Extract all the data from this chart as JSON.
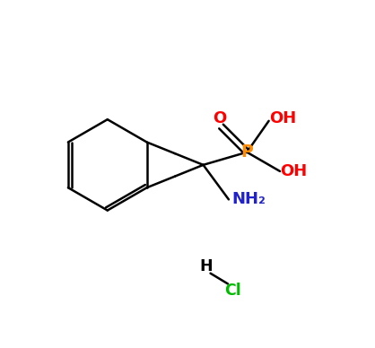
{
  "background_color": "#ffffff",
  "bond_color": "#000000",
  "P_color": "#ff8c00",
  "O_color": "#ff0000",
  "N_color": "#2222cc",
  "Cl_color": "#00bb00",
  "H_color": "#000000",
  "bond_width": 1.8,
  "figsize": [
    4.18,
    3.88
  ],
  "dpi": 100,
  "xlim": [
    0,
    10
  ],
  "ylim": [
    0,
    9.5
  ]
}
